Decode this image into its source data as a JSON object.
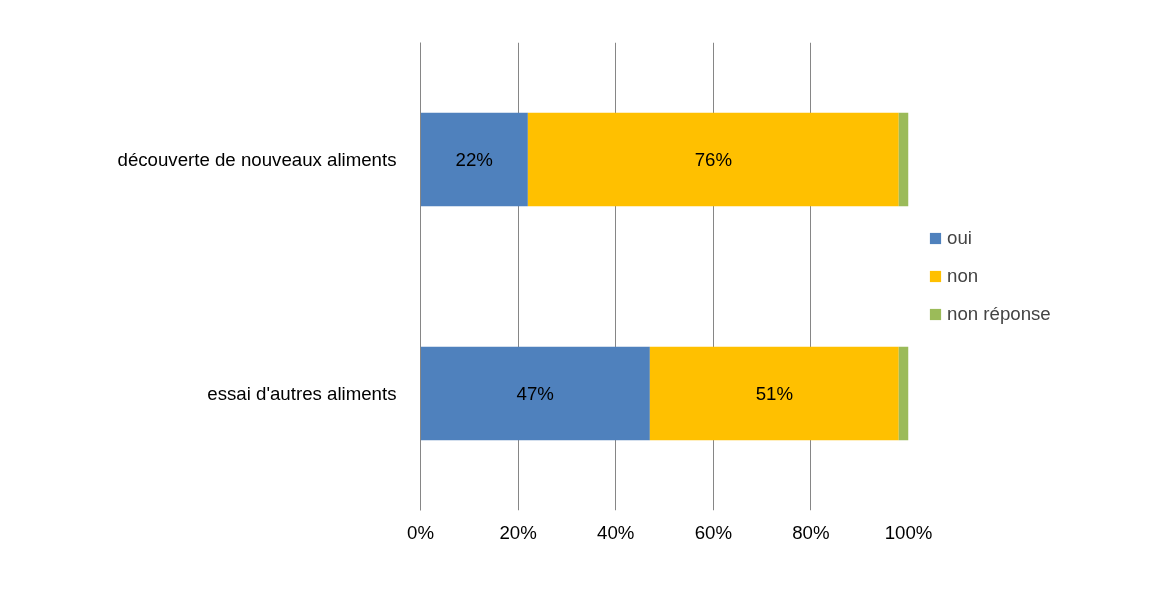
{
  "chart_data": {
    "type": "bar",
    "orientation": "horizontal",
    "stacked": true,
    "categories": [
      "découverte de nouveaux aliments",
      "essai d'autres aliments"
    ],
    "series": [
      {
        "name": "oui",
        "color": "#4f81bd",
        "values": [
          22,
          47
        ],
        "value_labels": [
          "22%",
          "47%"
        ]
      },
      {
        "name": "non",
        "color": "#ffc000",
        "values": [
          76,
          51
        ],
        "value_labels": [
          "76%",
          "51%"
        ]
      },
      {
        "name": "non réponse",
        "color": "#9bbb59",
        "values": [
          2,
          2
        ]
      }
    ],
    "xlim": [
      0,
      100
    ],
    "xticks": [
      {
        "value": 0,
        "label": "0%"
      },
      {
        "value": 20,
        "label": "20%"
      },
      {
        "value": 40,
        "label": "40%"
      },
      {
        "value": 60,
        "label": "60%"
      },
      {
        "value": 80,
        "label": "80%"
      },
      {
        "value": 100,
        "label": "100%"
      }
    ],
    "grid": "x",
    "legend": "right"
  }
}
